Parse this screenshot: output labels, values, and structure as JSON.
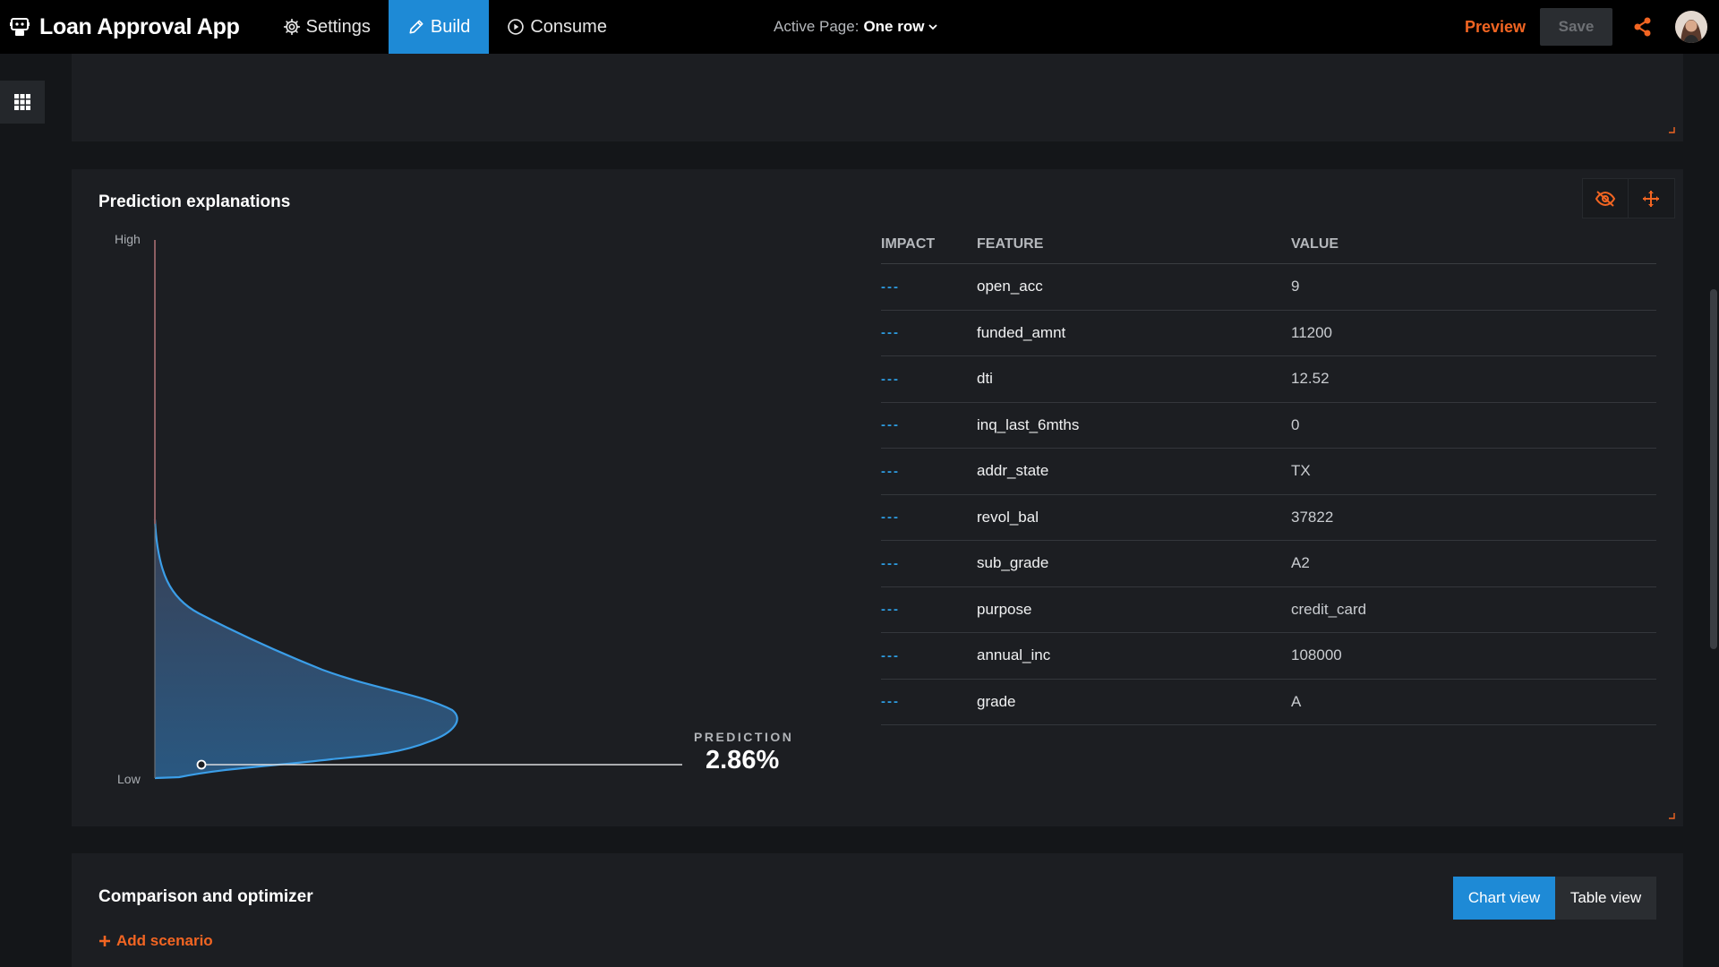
{
  "app": {
    "title": "Loan Approval App"
  },
  "nav": {
    "settings": "Settings",
    "build": "Build",
    "consume": "Consume"
  },
  "active_page": {
    "label": "Active Page:",
    "value": "One row"
  },
  "actions": {
    "preview": "Preview",
    "save": "Save"
  },
  "colors": {
    "accent": "#1e8ad6",
    "brand_orange": "#f26522",
    "curve_line": "#3b9ee8",
    "top_line": "#c24848"
  },
  "prediction_panel": {
    "title": "Prediction explanations",
    "axis_high": "High",
    "axis_low": "Low",
    "prediction_label": "PREDICTION",
    "prediction_value": "2.86%",
    "table": {
      "headers": {
        "impact": "IMPACT",
        "feature": "FEATURE",
        "value": "VALUE"
      },
      "rows": [
        {
          "impact": "---",
          "feature": "open_acc",
          "value": "9"
        },
        {
          "impact": "---",
          "feature": "funded_amnt",
          "value": "11200"
        },
        {
          "impact": "---",
          "feature": "dti",
          "value": "12.52"
        },
        {
          "impact": "---",
          "feature": "inq_last_6mths",
          "value": "0"
        },
        {
          "impact": "---",
          "feature": "addr_state",
          "value": "TX"
        },
        {
          "impact": "---",
          "feature": "revol_bal",
          "value": "37822"
        },
        {
          "impact": "---",
          "feature": "sub_grade",
          "value": "A2"
        },
        {
          "impact": "---",
          "feature": "purpose",
          "value": "credit_card"
        },
        {
          "impact": "---",
          "feature": "annual_inc",
          "value": "108000"
        },
        {
          "impact": "---",
          "feature": "grade",
          "value": "A"
        }
      ]
    }
  },
  "comparison_panel": {
    "title": "Comparison and optimizer",
    "add_scenario": "Add scenario",
    "chart_view": "Chart view",
    "table_view": "Table view"
  },
  "icons": [
    "robot-logo-icon",
    "gear-icon",
    "pencil-icon",
    "play-circle-icon",
    "chevron-down-icon",
    "share-icon",
    "grid-icon",
    "hide-eye-icon",
    "move-icon",
    "plus-icon"
  ]
}
